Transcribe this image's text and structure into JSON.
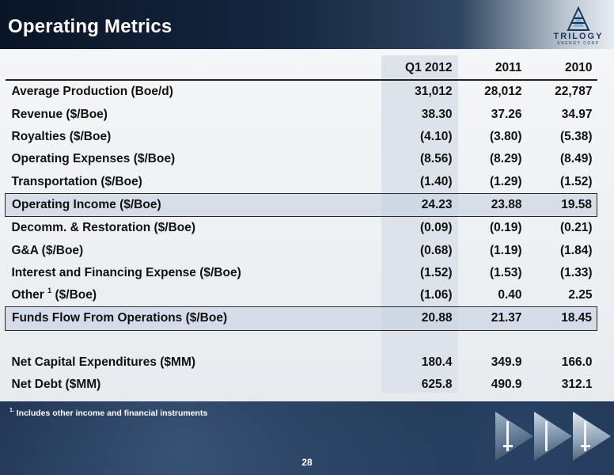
{
  "slide": {
    "title": "Operating Metrics",
    "page_number": "28",
    "logo": {
      "name": "TRILOGY",
      "sub": "ENERGY CORP"
    },
    "footnote": {
      "marker": "1.",
      "text": "Includes other income and financial instruments"
    },
    "colors": {
      "title_bar": "#0a1426",
      "panel": "#eef1f4",
      "highlight": "#c8d4e2",
      "logo_text": "#1c3660"
    }
  },
  "table": {
    "columns": [
      "Q1 2012",
      "2011",
      "2010"
    ],
    "rows": [
      {
        "label": "Average Production (Boe/d)",
        "values": [
          "31,012",
          "28,012",
          "22,787"
        ]
      },
      {
        "label": "Revenue ($/Boe)",
        "values": [
          "38.30",
          "37.26",
          "34.97"
        ]
      },
      {
        "label": "Royalties ($/Boe)",
        "values": [
          "(4.10)",
          "(3.80)",
          "(5.38)"
        ]
      },
      {
        "label": "Operating Expenses ($/Boe)",
        "values": [
          "(8.56)",
          "(8.29)",
          "(8.49)"
        ]
      },
      {
        "label": "Transportation ($/Boe)",
        "values": [
          "(1.40)",
          "(1.29)",
          "(1.52)"
        ]
      },
      {
        "label": "Operating Income ($/Boe)",
        "values": [
          "24.23",
          "23.88",
          "19.58"
        ]
      },
      {
        "label": "Decomm. & Restoration ($/Boe)",
        "values": [
          "(0.09)",
          "(0.19)",
          "(0.21)"
        ]
      },
      {
        "label": "G&A ($/Boe)",
        "values": [
          "(0.68)",
          "(1.19)",
          "(1.84)"
        ]
      },
      {
        "label": "Interest and Financing Expense ($/Boe)",
        "values": [
          "(1.52)",
          "(1.53)",
          "(1.33)"
        ]
      },
      {
        "label_prefix": "Other",
        "label_sup": "1",
        "label_suffix": "($/Boe)",
        "values": [
          "(1.06)",
          "0.40",
          "2.25"
        ]
      },
      {
        "label": "Funds Flow From Operations ($/Boe)",
        "values": [
          "20.88",
          "21.37",
          "18.45"
        ]
      },
      {
        "label": "Net Capital Expenditures ($MM)",
        "values": [
          "180.4",
          "349.9",
          "166.0"
        ]
      },
      {
        "label": "Net Debt ($MM)",
        "values": [
          "625.8",
          "490.9",
          "312.1"
        ]
      }
    ]
  }
}
